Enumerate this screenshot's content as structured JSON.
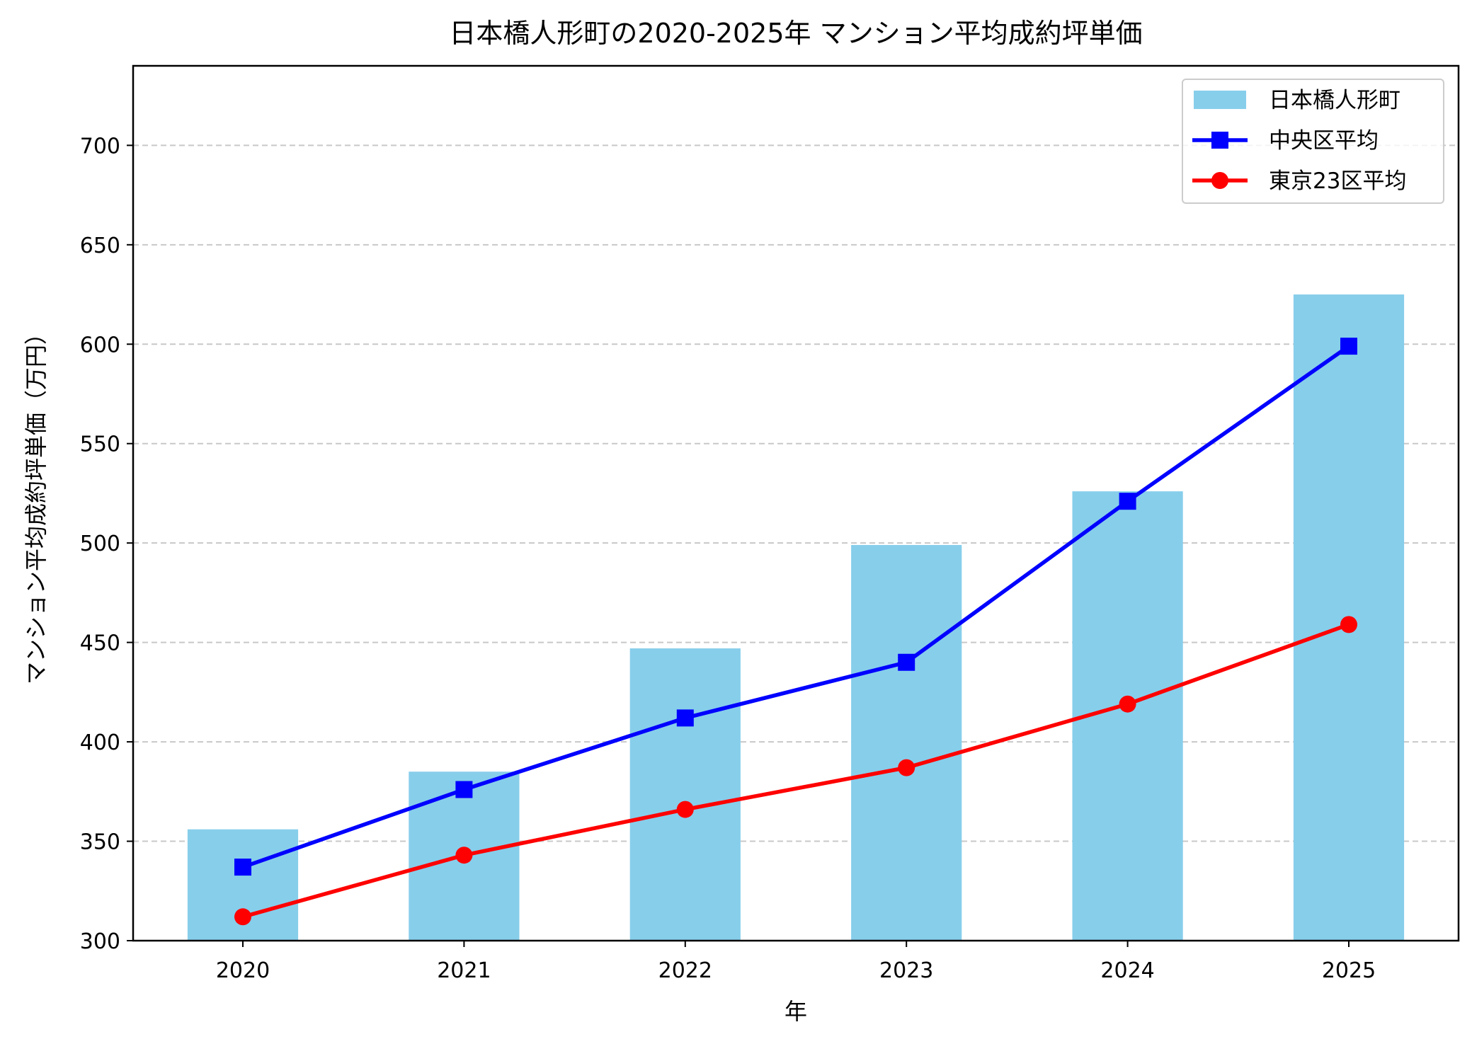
{
  "chart_data": {
    "type": "bar+line",
    "title": "日本橋人形町の2020-2025年 マンション平均成約坪単価",
    "xlabel": "年",
    "ylabel": "マンション平均成約坪単価（万円）",
    "categories": [
      "2020",
      "2021",
      "2022",
      "2023",
      "2024",
      "2025"
    ],
    "ylim": [
      300,
      740
    ],
    "yticks": [
      300,
      350,
      400,
      450,
      500,
      550,
      600,
      650,
      700
    ],
    "grid": "y, dashed",
    "legend_position": "top-right",
    "series": [
      {
        "name": "日本橋人形町",
        "kind": "bar",
        "color": "#87ceeb",
        "values": [
          356,
          385,
          447,
          499,
          526,
          625
        ]
      },
      {
        "name": "中央区平均",
        "kind": "line",
        "marker": "square",
        "color": "#0000ff",
        "values": [
          337,
          376,
          412,
          440,
          521,
          599
        ]
      },
      {
        "name": "東京23区平均",
        "kind": "line",
        "marker": "circle",
        "color": "#ff0000",
        "values": [
          312,
          343,
          366,
          387,
          419,
          459
        ]
      }
    ]
  }
}
